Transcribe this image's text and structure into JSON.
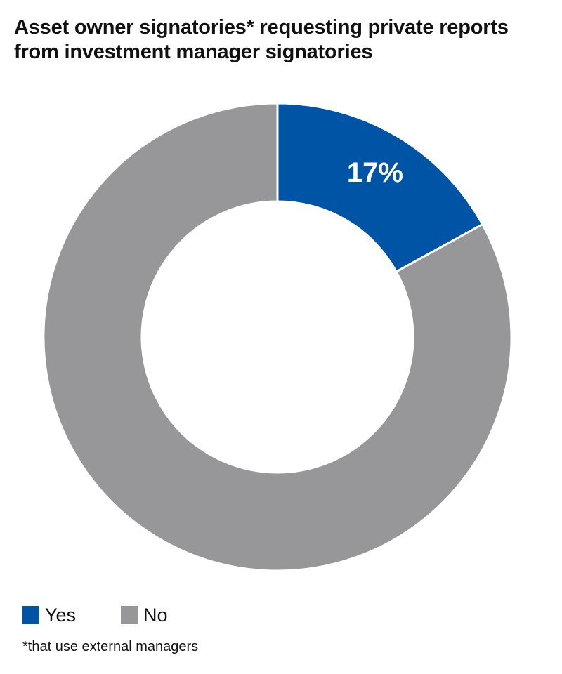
{
  "chart_data": {
    "type": "pie",
    "title_lines": [
      "Asset owner signatories* requesting private reports",
      "from investment manager signatories"
    ],
    "categories": [
      "Yes",
      "No"
    ],
    "values": [
      17,
      83
    ],
    "data_labels": [
      "17%",
      ""
    ],
    "colors": [
      "#0054a5",
      "#97979a"
    ],
    "donut": true,
    "legend_position": "bottom-left",
    "footnote": "*that use external managers"
  }
}
